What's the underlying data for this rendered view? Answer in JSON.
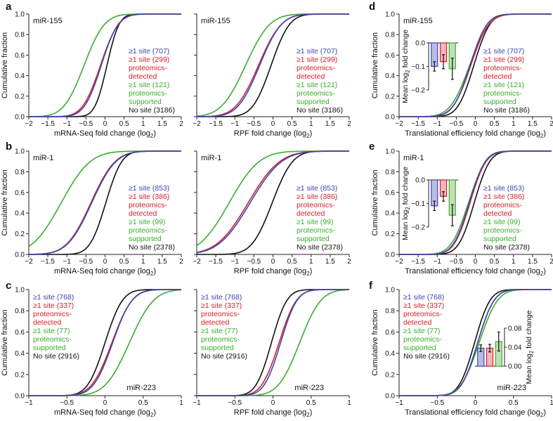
{
  "colors": {
    "blue": "#3a47b0",
    "red": "#d4202a",
    "green": "#3aad2e",
    "black": "#111111",
    "bar_blue": "#b9bde6",
    "bar_red": "#f2b5bd",
    "bar_green": "#bfe0b5"
  },
  "y_axis_label": "Cumulative fraction",
  "inset_y_label_lines": [
    "Mean log",
    "2",
    " fold change"
  ],
  "chart_data": [
    {
      "type": "line",
      "panel_letter": "a",
      "region": "miR-155",
      "xlabel": "mRNA-Seq fold change (log2)",
      "xlabel_main": "mRNA-Seq fold change (log",
      "xlabel_sub": "2",
      "xlabel_end": ")",
      "xlim": [
        -2,
        2
      ],
      "ylim": [
        0,
        1
      ],
      "xticks": [
        "−2",
        "−1.5",
        "−1",
        "−0.5",
        "0",
        "0.5",
        "1",
        "1.5",
        "2"
      ],
      "yticks": [
        "0.0",
        "0.2",
        "0.4",
        "0.6",
        "0.8",
        "1.0"
      ],
      "series": [
        {
          "name": "≥1 site (707)",
          "color_key": "blue",
          "mu": -0.1,
          "sigma": 0.35
        },
        {
          "name": "≥1 site (299) proteomics-detected",
          "color_key": "red",
          "mu": -0.12,
          "sigma": 0.37
        },
        {
          "name": "≥1 site (121) proteomics-supported",
          "color_key": "green",
          "mu": -0.55,
          "sigma": 0.42
        },
        {
          "name": "No site (3186)",
          "color_key": "black",
          "mu": 0.05,
          "sigma": 0.25
        }
      ],
      "legend": [
        "≥1 site (707)",
        "≥1 site (299)",
        "proteomics-",
        "detected",
        "≥1 site (121)",
        "proteomics-",
        "supported",
        "No site (3186)"
      ],
      "legend_color_keys": [
        "blue",
        "red",
        "red",
        "red",
        "green",
        "green",
        "green",
        "black"
      ],
      "legend_position": "right"
    },
    {
      "type": "line",
      "panel_letter": "",
      "region": "miR-155",
      "xlabel": "RPF fold change (log2)",
      "xlabel_main": "RPF fold change (log",
      "xlabel_sub": "2",
      "xlabel_end": ")",
      "xlim": [
        -2,
        2
      ],
      "ylim": [
        0,
        1
      ],
      "xticks": [
        "−2",
        "−1.5",
        "−1",
        "−0.5",
        "0",
        "0.5",
        "1",
        "1.5",
        "2"
      ],
      "yticks": [],
      "series": [
        {
          "name": "≥1 site (707)",
          "color_key": "blue",
          "mu": -0.35,
          "sigma": 0.45
        },
        {
          "name": "≥1 site (299) proteomics-detected",
          "color_key": "red",
          "mu": -0.38,
          "sigma": 0.47
        },
        {
          "name": "≥1 site (121) proteomics-supported",
          "color_key": "green",
          "mu": -0.72,
          "sigma": 0.5
        },
        {
          "name": "No site (3186)",
          "color_key": "black",
          "mu": -0.05,
          "sigma": 0.38
        }
      ],
      "legend": [
        "≥1 site (707)",
        "≥1 site (299)",
        "proteomics-",
        "detected",
        "≥1 site (121)",
        "proteomics-",
        "supported",
        "No site (3186)"
      ],
      "legend_color_keys": [
        "blue",
        "red",
        "red",
        "red",
        "green",
        "green",
        "green",
        "black"
      ],
      "legend_position": "right"
    },
    {
      "type": "line",
      "panel_letter": "d",
      "region": "miR-155",
      "xlabel": "Translational efficiency fold change (log2)",
      "xlabel_main": "Translational efficiency fold change (log",
      "xlabel_sub": "2",
      "xlabel_end": ")",
      "xlim": [
        -2,
        2
      ],
      "ylim": [
        0,
        1
      ],
      "xticks": [
        "−2",
        "−1.5",
        "−1",
        "−0.5",
        "0",
        "0.5",
        "1",
        "1.5",
        "2"
      ],
      "yticks": [
        "0.0",
        "0.2",
        "0.4",
        "0.6",
        "0.8",
        "1.0"
      ],
      "series": [
        {
          "name": "≥1 site (707)",
          "color_key": "blue",
          "mu": -0.14,
          "sigma": 0.35
        },
        {
          "name": "≥1 site (299) proteomics-detected",
          "color_key": "red",
          "mu": -0.12,
          "sigma": 0.37
        },
        {
          "name": "≥1 site (121) proteomics-supported",
          "color_key": "green",
          "mu": -0.15,
          "sigma": 0.4
        },
        {
          "name": "No site (3186)",
          "color_key": "black",
          "mu": -0.04,
          "sigma": 0.33
        }
      ],
      "legend": [
        "≥1 site (707)",
        "≥1 site (299)",
        "proteomics-",
        "detected",
        "≥1 site (121)",
        "proteomics-",
        "supported",
        "No site (3186)"
      ],
      "legend_color_keys": [
        "blue",
        "red",
        "red",
        "red",
        "green",
        "green",
        "green",
        "black"
      ],
      "legend_position": "right",
      "inset": {
        "type": "bar",
        "values": [
          -0.1,
          -0.08,
          -0.11
        ],
        "errors": [
          0.02,
          0.03,
          0.045
        ],
        "color_keys": [
          "bar_blue",
          "bar_red",
          "bar_green"
        ],
        "edge_keys": [
          "blue",
          "red",
          "green"
        ],
        "ylim": [
          -0.2,
          0
        ],
        "yticks": [
          "0.0",
          "−0.1",
          "−0.2"
        ],
        "ytick_values": [
          0,
          -0.1,
          -0.2
        ],
        "ylabel": "Mean log2 fold change"
      }
    },
    {
      "type": "line",
      "panel_letter": "b",
      "region": "miR-1",
      "xlabel": "mRNA-Seq fold change (log2)",
      "xlabel_main": "mRNA-Seq fold change (log",
      "xlabel_sub": "2",
      "xlabel_end": ")",
      "xlim": [
        -2,
        2
      ],
      "ylim": [
        0,
        1
      ],
      "xticks": [
        "−2",
        "−1.5",
        "−1",
        "−0.5",
        "0",
        "0.5",
        "1",
        "1.5",
        "2"
      ],
      "yticks": [
        "0.0",
        "0.2",
        "0.4",
        "0.6",
        "0.8",
        "1.0"
      ],
      "series": [
        {
          "name": "≥1 site (853)",
          "color_key": "blue",
          "mu": -0.35,
          "sigma": 0.5
        },
        {
          "name": "≥1 site (386) proteomics-detected",
          "color_key": "red",
          "mu": -0.37,
          "sigma": 0.5
        },
        {
          "name": "≥1 site (99) proteomics-supported",
          "color_key": "green",
          "mu": -1.15,
          "sigma": 0.6
        },
        {
          "name": "No site (2378)",
          "color_key": "black",
          "mu": 0.02,
          "sigma": 0.33
        }
      ],
      "legend": [
        "≥1 site (853)",
        "≥1 site (386)",
        "proteomics-",
        "detected",
        "≥1 site (99)",
        "proteomics-",
        "supported",
        "No site (2378)"
      ],
      "legend_color_keys": [
        "blue",
        "red",
        "red",
        "red",
        "green",
        "green",
        "green",
        "black"
      ],
      "legend_position": "right"
    },
    {
      "type": "line",
      "panel_letter": "",
      "region": "miR-1",
      "xlabel": "RPF fold change (log2)",
      "xlabel_main": "RPF fold change (log",
      "xlabel_sub": "2",
      "xlabel_end": ")",
      "xlim": [
        -2,
        2
      ],
      "ylim": [
        0,
        1
      ],
      "xticks": [
        "−2",
        "−1.5",
        "−1",
        "−0.5",
        "0",
        "0.5",
        "1",
        "1.5",
        "2"
      ],
      "yticks": [],
      "series": [
        {
          "name": "≥1 site (853)",
          "color_key": "blue",
          "mu": -0.6,
          "sigma": 0.65
        },
        {
          "name": "≥1 site (386) proteomics-detected",
          "color_key": "red",
          "mu": -0.65,
          "sigma": 0.65
        },
        {
          "name": "≥1 site (99) proteomics-supported",
          "color_key": "green",
          "mu": -1.15,
          "sigma": 0.62
        },
        {
          "name": "No site (2378)",
          "color_key": "black",
          "mu": -0.02,
          "sigma": 0.42
        }
      ],
      "legend": [
        "≥1 site (853)",
        "≥1 site (386)",
        "proteomics-",
        "detected",
        "≥1 site (99)",
        "proteomics-",
        "supported",
        "No site (2378)"
      ],
      "legend_color_keys": [
        "blue",
        "red",
        "red",
        "red",
        "green",
        "green",
        "green",
        "black"
      ],
      "legend_position": "right"
    },
    {
      "type": "line",
      "panel_letter": "e",
      "region": "miR-1",
      "xlabel": "Translational efficiency fold change (log2)",
      "xlabel_main": "Translational efficiency fold change (log",
      "xlabel_sub": "2",
      "xlabel_end": ")",
      "xlim": [
        -2,
        2
      ],
      "ylim": [
        0,
        1
      ],
      "xticks": [
        "−2",
        "−1.5",
        "−1",
        "−0.5",
        "0",
        "0.5",
        "1",
        "1.5",
        "2"
      ],
      "yticks": [
        "0.0",
        "0.2",
        "0.4",
        "0.6",
        "0.8",
        "1.0"
      ],
      "series": [
        {
          "name": "≥1 site (853)",
          "color_key": "blue",
          "mu": -0.16,
          "sigma": 0.33
        },
        {
          "name": "≥1 site (386) proteomics-detected",
          "color_key": "red",
          "mu": -0.14,
          "sigma": 0.33
        },
        {
          "name": "≥1 site (99) proteomics-supported",
          "color_key": "green",
          "mu": -0.18,
          "sigma": 0.36
        },
        {
          "name": "No site (2378)",
          "color_key": "black",
          "mu": -0.03,
          "sigma": 0.32
        }
      ],
      "legend": [
        "≥1 site (853)",
        "≥1 site (386)",
        "proteomics-",
        "detected",
        "≥1 site (99)",
        "proteomics-",
        "supported",
        "No site (2378)"
      ],
      "legend_color_keys": [
        "blue",
        "red",
        "red",
        "red",
        "green",
        "green",
        "green",
        "black"
      ],
      "legend_position": "right",
      "inset": {
        "type": "bar",
        "values": [
          -0.11,
          -0.07,
          -0.15
        ],
        "errors": [
          0.02,
          0.02,
          0.045
        ],
        "color_keys": [
          "bar_blue",
          "bar_red",
          "bar_green"
        ],
        "edge_keys": [
          "blue",
          "red",
          "green"
        ],
        "ylim": [
          -0.2,
          0
        ],
        "yticks": [
          "0.0",
          "−0.1",
          "−0.2"
        ],
        "ytick_values": [
          0,
          -0.1,
          -0.2
        ],
        "ylabel": "Mean log2 fold change"
      }
    },
    {
      "type": "line",
      "panel_letter": "c",
      "region": "miR-223",
      "xlabel": "mRNA-Seq fold change (log2)",
      "xlabel_main": "mRNA-Seq fold change (log",
      "xlabel_sub": "2",
      "xlabel_end": ")",
      "xlim": [
        -1,
        1
      ],
      "ylim": [
        0,
        1
      ],
      "xticks": [
        "−1",
        "−0.5",
        "0",
        "0.5",
        "1"
      ],
      "yticks": [
        "0.0",
        "0.2",
        "0.4",
        "0.6",
        "0.8",
        "1.0"
      ],
      "series": [
        {
          "name": "≥1 site (768)",
          "color_key": "blue",
          "mu": 0.1,
          "sigma": 0.2
        },
        {
          "name": "≥1 site (337) proteomics-detected",
          "color_key": "red",
          "mu": 0.09,
          "sigma": 0.21
        },
        {
          "name": "≥1 site (77) proteomics-supported",
          "color_key": "green",
          "mu": 0.32,
          "sigma": 0.25
        },
        {
          "name": "No site (2916)",
          "color_key": "black",
          "mu": 0.0,
          "sigma": 0.18
        }
      ],
      "legend": [
        "≥1 site (768)",
        "≥1 site (337)",
        "proteomics-",
        "detected",
        "≥1 site (77)",
        "proteomics-",
        "supported",
        "No site (2916)"
      ],
      "legend_color_keys": [
        "blue",
        "red",
        "red",
        "red",
        "green",
        "green",
        "green",
        "black"
      ],
      "legend_position": "left"
    },
    {
      "type": "line",
      "panel_letter": "",
      "region": "miR-223",
      "xlabel": "RPF fold change (log2)",
      "xlabel_main": "RPF fold change (log",
      "xlabel_sub": "2",
      "xlabel_end": ")",
      "xlim": [
        -1,
        1
      ],
      "ylim": [
        0,
        1
      ],
      "xticks": [
        "−1",
        "−0.5",
        "0",
        "0.5",
        "1"
      ],
      "yticks": [],
      "series": [
        {
          "name": "≥1 site (768)",
          "color_key": "blue",
          "mu": 0.1,
          "sigma": 0.17
        },
        {
          "name": "≥1 site (337) proteomics-detected",
          "color_key": "red",
          "mu": 0.08,
          "sigma": 0.18
        },
        {
          "name": "≥1 site (77) proteomics-supported",
          "color_key": "green",
          "mu": 0.35,
          "sigma": 0.22
        },
        {
          "name": "No site (2916)",
          "color_key": "black",
          "mu": -0.02,
          "sigma": 0.16
        }
      ],
      "legend": [
        "≥1 site (768)",
        "≥1 site (337)",
        "proteomics-",
        "detected",
        "≥1 site (77)",
        "proteomics-",
        "supported",
        "No site (2916)"
      ],
      "legend_color_keys": [
        "blue",
        "red",
        "red",
        "red",
        "green",
        "green",
        "green",
        "black"
      ],
      "legend_position": "left"
    },
    {
      "type": "line",
      "panel_letter": "f",
      "region": "miR-223",
      "xlabel": "Translational efficiency fold change (log2)",
      "xlabel_main": "Translational efficiency fold change (log",
      "xlabel_sub": "2",
      "xlabel_end": ")",
      "xlim": [
        -1,
        1
      ],
      "ylim": [
        0,
        1
      ],
      "xticks": [
        "−1",
        "−0.5",
        "0",
        "0.5",
        "1"
      ],
      "yticks": [
        "0.0",
        "0.2",
        "0.4",
        "0.6",
        "0.8",
        "1.0"
      ],
      "series": [
        {
          "name": "≥1 site (768)",
          "color_key": "blue",
          "mu": 0.03,
          "sigma": 0.17
        },
        {
          "name": "≥1 site (337) proteomics-detected",
          "color_key": "red",
          "mu": 0.03,
          "sigma": 0.17
        },
        {
          "name": "≥1 site (77) proteomics-supported",
          "color_key": "green",
          "mu": 0.05,
          "sigma": 0.19
        },
        {
          "name": "No site (2916)",
          "color_key": "black",
          "mu": -0.01,
          "sigma": 0.16
        }
      ],
      "legend": [
        "≥1 site (768)",
        "≥1 site (337)",
        "proteomics-",
        "detected",
        "≥1 site (77)",
        "proteomics-",
        "supported",
        "No site (2916)"
      ],
      "legend_color_keys": [
        "blue",
        "red",
        "red",
        "red",
        "green",
        "green",
        "green",
        "black"
      ],
      "legend_position": "left",
      "inset": {
        "type": "bar",
        "values": [
          0.038,
          0.038,
          0.052
        ],
        "errors": [
          0.007,
          0.008,
          0.02
        ],
        "color_keys": [
          "bar_blue",
          "bar_red",
          "bar_green"
        ],
        "edge_keys": [
          "blue",
          "red",
          "green"
        ],
        "ylim": [
          0,
          0.08
        ],
        "yticks": [
          "0.00",
          "0.04",
          "0.08"
        ],
        "ytick_values": [
          0,
          0.04,
          0.08
        ],
        "ylabel": "Mean log2 fold change"
      }
    }
  ]
}
